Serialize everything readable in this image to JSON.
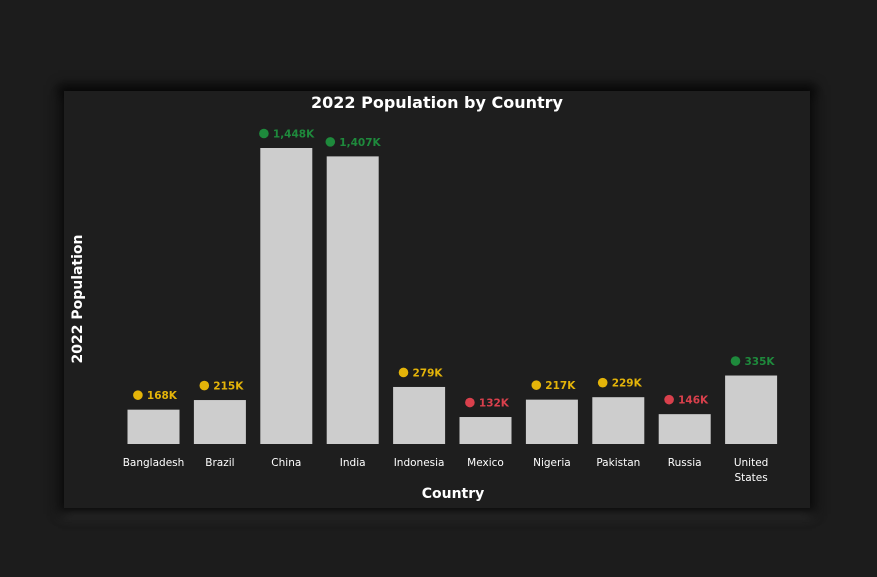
{
  "chart_data": {
    "type": "bar",
    "title": "2022 Population by Country",
    "xlabel": "Country",
    "ylabel": "2022 Population",
    "categories": [
      "Bangladesh",
      "Brazil",
      "China",
      "India",
      "Indonesia",
      "Mexico",
      "Nigeria",
      "Pakistan",
      "Russia",
      "United States"
    ],
    "values": [
      168,
      215,
      1448,
      1407,
      279,
      132,
      217,
      229,
      146,
      335
    ],
    "data_labels": [
      "168K",
      "215K",
      "1,448K",
      "1,407K",
      "279K",
      "132K",
      "217K",
      "229K",
      "146K",
      "335K"
    ],
    "marker_status": [
      "medium",
      "medium",
      "high",
      "high",
      "medium",
      "low",
      "medium",
      "medium",
      "low",
      "high"
    ],
    "ylim": [
      0,
      1448
    ],
    "grid": false,
    "legend": "none",
    "colors": {
      "bar": "#cdcdcd",
      "high": "#1e8a3c",
      "medium": "#e4b409",
      "low": "#d9404c"
    }
  }
}
